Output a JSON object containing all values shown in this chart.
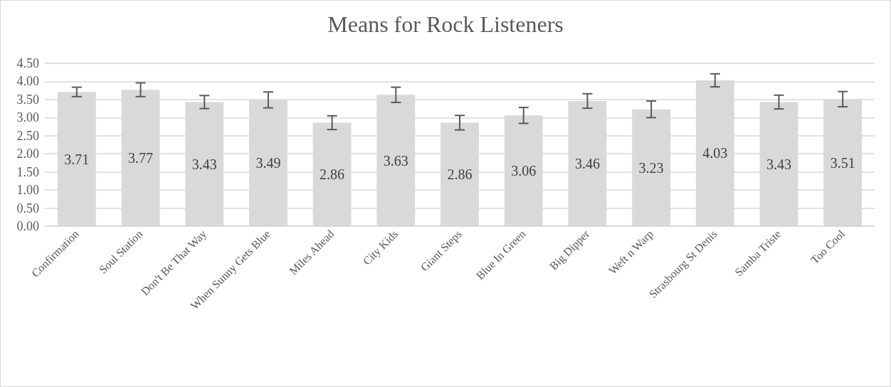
{
  "chart_data": {
    "type": "bar",
    "title": "Means for Rock Listeners",
    "categories": [
      "Confirmation",
      "Soul Station",
      "Don't Be That Way",
      "When Sunny Gets Blue",
      "Miles Ahead",
      "City Kids",
      "Giant Steps",
      "Blue In Green",
      "Big Dipper",
      "Weft n Warp",
      "Strasbourg St Denis",
      "Samba Triste",
      "Too Cool"
    ],
    "values": [
      3.71,
      3.77,
      3.43,
      3.49,
      2.86,
      3.63,
      2.86,
      3.06,
      3.46,
      3.23,
      4.03,
      3.43,
      3.51
    ],
    "errors": [
      0.13,
      0.19,
      0.18,
      0.22,
      0.19,
      0.21,
      0.2,
      0.22,
      0.2,
      0.23,
      0.18,
      0.19,
      0.21
    ],
    "color": "#d9d9d9",
    "ylim": [
      0,
      4.5
    ],
    "yticks": [
      {
        "value": 0,
        "label": "0.00"
      },
      {
        "value": 0.5,
        "label": "0.50"
      },
      {
        "value": 1,
        "label": "1.00"
      },
      {
        "value": 1.5,
        "label": "1.50"
      },
      {
        "value": 2,
        "label": "2.00"
      },
      {
        "value": 2.5,
        "label": "2.50"
      },
      {
        "value": 3,
        "label": "3.00"
      },
      {
        "value": 3.5,
        "label": "3.50"
      },
      {
        "value": 4,
        "label": "4.00"
      },
      {
        "value": 4.5,
        "label": "4.50"
      }
    ],
    "grid": "y",
    "data_labels": true
  }
}
